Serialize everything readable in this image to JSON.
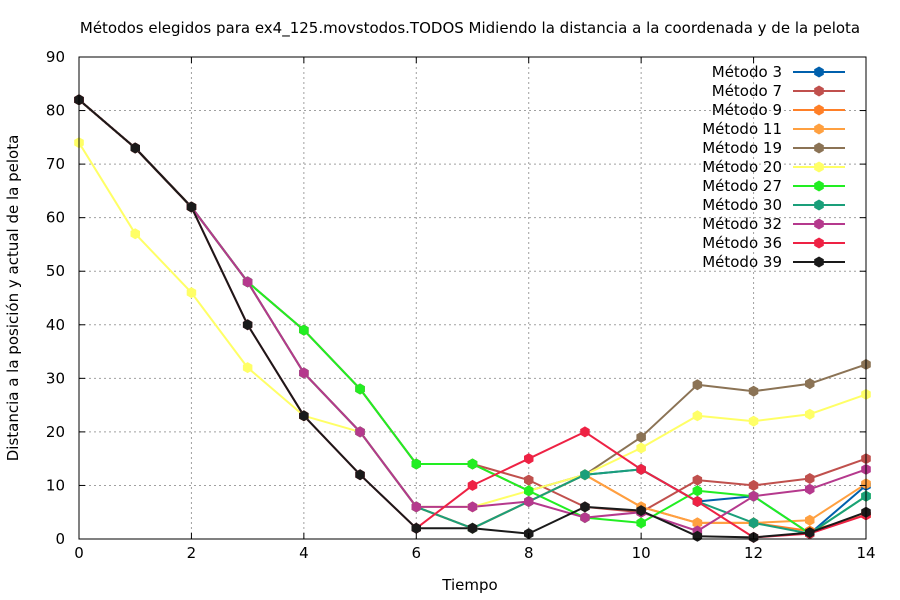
{
  "chart_data": {
    "type": "line",
    "title": "Métodos elegidos para ex4_125.movstodos.TODOS Midiendo la distancia a la coordenada y de la pelota",
    "xlabel": "Tiempo",
    "ylabel": "Distancia a la posición y actual de la pelota",
    "xlim": [
      0,
      14
    ],
    "ylim": [
      0,
      90
    ],
    "xticks": [
      0,
      2,
      4,
      6,
      8,
      10,
      12,
      14
    ],
    "yticks": [
      0,
      10,
      20,
      30,
      40,
      50,
      60,
      70,
      80,
      90
    ],
    "grid": true,
    "legend_position": "top-right",
    "series": [
      {
        "name": "Método 3",
        "color": "#0060ad",
        "x": [
          0,
          1,
          2,
          3,
          4,
          5,
          6,
          7,
          8,
          9,
          10,
          11,
          12,
          13,
          14
        ],
        "y": [
          82,
          73,
          62,
          48,
          31,
          20,
          6,
          2,
          7,
          12,
          13,
          7,
          8,
          1,
          10
        ]
      },
      {
        "name": "Método 7",
        "color": "#c0504d",
        "x": [
          0,
          1,
          2,
          3,
          4,
          5,
          6,
          7,
          8,
          9,
          10,
          11,
          12,
          13,
          14
        ],
        "y": [
          82,
          73,
          62,
          48,
          39,
          28,
          14,
          14,
          11,
          6,
          5,
          11,
          10,
          11.3,
          15
        ]
      },
      {
        "name": "Método 9",
        "color": "#ff7f27",
        "x": [
          0,
          1,
          2,
          3,
          4,
          5,
          6,
          7,
          8,
          9,
          10,
          11,
          12,
          13,
          14
        ],
        "y": [
          82,
          73,
          62,
          48,
          31,
          20,
          6,
          2,
          7,
          12,
          6,
          3,
          3,
          1.5,
          4.5
        ]
      },
      {
        "name": "Método 11",
        "color": "#ffa040",
        "x": [
          0,
          1,
          2,
          3,
          4,
          5,
          6,
          7,
          8,
          9,
          10,
          11,
          12,
          13,
          14
        ],
        "y": [
          82,
          73,
          62,
          48,
          31,
          20,
          6,
          2,
          7,
          12,
          6,
          3,
          3,
          3.5,
          10.3
        ]
      },
      {
        "name": "Método 19",
        "color": "#8b7355",
        "x": [
          0,
          1,
          2,
          3,
          4,
          5,
          6,
          7,
          8,
          9,
          10,
          11,
          12,
          13,
          14
        ],
        "y": [
          82,
          73,
          62,
          48,
          39,
          28,
          14,
          14,
          9,
          12,
          19,
          28.8,
          27.6,
          29,
          32.6
        ]
      },
      {
        "name": "Método 20",
        "color": "#ffff66",
        "x": [
          0,
          1,
          2,
          3,
          4,
          5,
          6,
          7,
          8,
          9,
          10,
          11,
          12,
          13,
          14
        ],
        "y": [
          74,
          57,
          46,
          32,
          23,
          20,
          6,
          6,
          9,
          12,
          17,
          23,
          22,
          23.3,
          27
        ]
      },
      {
        "name": "Método 27",
        "color": "#22ee22",
        "x": [
          0,
          1,
          2,
          3,
          4,
          5,
          6,
          7,
          8,
          9,
          10,
          11,
          12,
          13,
          14
        ],
        "y": [
          82,
          73,
          62,
          48,
          39,
          28,
          14,
          14,
          9,
          4,
          3,
          9,
          8,
          1,
          8
        ]
      },
      {
        "name": "Método 30",
        "color": "#1a9f7a",
        "x": [
          0,
          1,
          2,
          3,
          4,
          5,
          6,
          7,
          8,
          9,
          10,
          11,
          12,
          13,
          14
        ],
        "y": [
          82,
          73,
          62,
          48,
          31,
          20,
          6,
          2,
          7,
          12,
          13,
          7,
          3,
          1,
          8
        ]
      },
      {
        "name": "Método 32",
        "color": "#b5398d",
        "x": [
          0,
          1,
          2,
          3,
          4,
          5,
          6,
          7,
          8,
          9,
          10,
          11,
          12,
          13,
          14
        ],
        "y": [
          82,
          73,
          62,
          48,
          31,
          20,
          6,
          6,
          7,
          4,
          5,
          1.5,
          8,
          9.3,
          13
        ]
      },
      {
        "name": "Método 36",
        "color": "#ee2244",
        "x": [
          0,
          1,
          2,
          3,
          4,
          5,
          6,
          7,
          8,
          9,
          10,
          11,
          12,
          13,
          14
        ],
        "y": [
          82,
          73,
          62,
          40,
          23,
          12,
          2,
          10,
          15,
          20,
          13,
          7,
          0.3,
          1,
          4.5
        ]
      },
      {
        "name": "Método 39",
        "color": "#1a1a1a",
        "x": [
          0,
          1,
          2,
          3,
          4,
          5,
          6,
          7,
          8,
          9,
          10,
          11,
          12,
          13,
          14
        ],
        "y": [
          82,
          73,
          62,
          40,
          23,
          12,
          2,
          2,
          1,
          6,
          5.3,
          0.5,
          0.3,
          1.2,
          5
        ]
      }
    ]
  }
}
